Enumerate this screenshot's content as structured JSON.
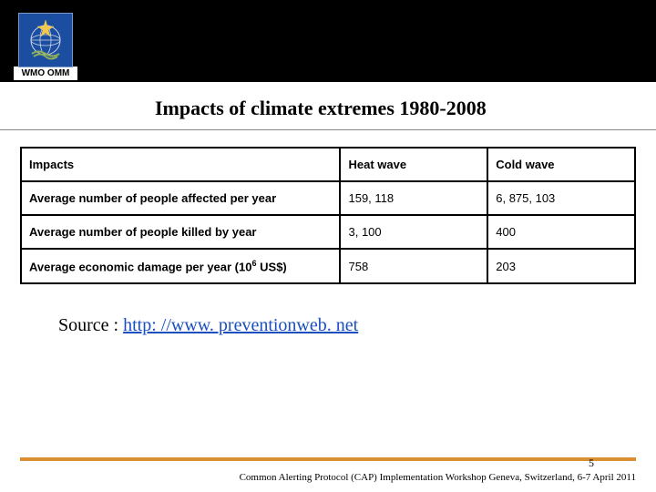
{
  "header": {
    "logo_label": "WMO OMM"
  },
  "title": "Impacts of climate extremes  1980-2008",
  "table": {
    "columns": [
      "Impacts",
      "Heat wave",
      "Cold wave"
    ],
    "rows": [
      {
        "label": "Average number of people affected per year",
        "heat": "159, 118",
        "cold": "6, 875, 103"
      },
      {
        "label": "Average number of people killed by year",
        "heat": "3, 100",
        "cold": "400"
      },
      {
        "label_html": "Average economic damage per year (10<sup>6</sup>  US$)",
        "heat": "758",
        "cold": "203"
      }
    ]
  },
  "source": {
    "prefix": "Source :  ",
    "link_text": "http: //www. preventionweb. net"
  },
  "footer": {
    "page_number": "5",
    "text": "Common Alerting Protocol (CAP) Implementation Workshop Geneva, Switzerland, 6-7 April 2011"
  },
  "colors": {
    "header_bg": "#000000",
    "logo_bg": "#1b4da0",
    "accent_rule": "#d99031",
    "link": "#1a4fc0"
  }
}
